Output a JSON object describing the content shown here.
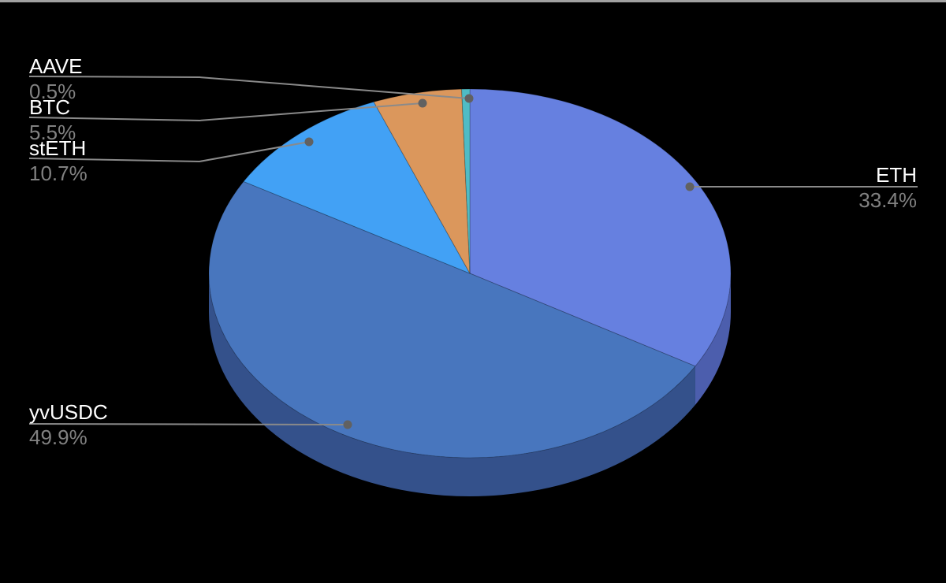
{
  "window": {
    "background": "#000000",
    "top_edge_color": "#a1a1a1"
  },
  "chart_data": {
    "type": "pie",
    "is_3d": true,
    "title": "",
    "start_angle_deg": 0,
    "direction": "clockwise",
    "legend_position": "labeled-callouts",
    "background": "#000000",
    "label_color": "#ffffff",
    "percent_color": "#818181",
    "leader_line_color": "#8a8a8a",
    "leader_dot_color": "#616161",
    "slices": [
      {
        "label": "ETH",
        "value_pct": 33.4,
        "display": "33.4%",
        "color": "#6680e0",
        "side_color": "#4c5ead"
      },
      {
        "label": "yvUSDC",
        "value_pct": 49.9,
        "display": "49.9%",
        "color": "#4876be",
        "side_color": "#34518b"
      },
      {
        "label": "stETH",
        "value_pct": 10.7,
        "display": "10.7%",
        "color": "#42a1f5",
        "side_color": "#2f74b3"
      },
      {
        "label": "BTC",
        "value_pct": 5.5,
        "display": "5.5%",
        "color": "#db975c",
        "side_color": "#9c6b41"
      },
      {
        "label": "AAVE",
        "value_pct": 0.5,
        "display": "0.5%",
        "color": "#4fbcc5",
        "side_color": "#38858c"
      }
    ]
  }
}
